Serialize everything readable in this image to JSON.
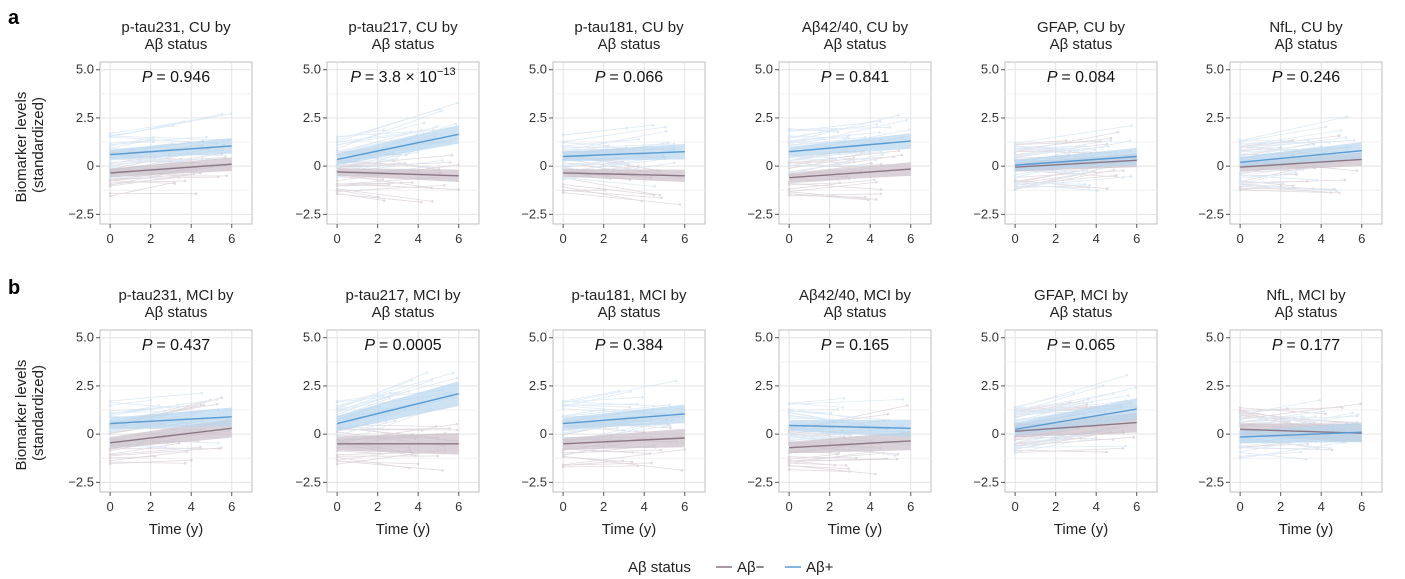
{
  "ylabel": "Biomarker levels (standardized)",
  "xlabel": "Time (y)",
  "legend": {
    "title": "Aβ status",
    "neg": "Aβ−",
    "pos": "Aβ+"
  },
  "colors": {
    "neg": "#8a7785",
    "pos": "#5a9bd2",
    "negBand": "#cbbfc8",
    "posBand": "#b8d5ee"
  },
  "rows": [
    {
      "letter": "a"
    },
    {
      "letter": "b"
    }
  ],
  "chart_data": [
    {
      "type": "line",
      "row": 0,
      "title_line1": "p-tau231, CU by",
      "title_line2": "Aβ status",
      "p_label": "P",
      "p_value": "= 0.946",
      "p_exp": "",
      "x": [
        0,
        6
      ],
      "xticks": [
        0,
        2,
        4,
        6
      ],
      "yticks": [
        -2.5,
        0,
        2.5,
        5.0
      ],
      "ytick_labels": [
        "−2.5",
        "0",
        "2.5",
        "5.0"
      ],
      "ylim": [
        -3,
        5.4
      ],
      "xlim": [
        -0.5,
        7
      ],
      "series": [
        {
          "name": "Aβ−",
          "values": [
            -0.35,
            0.1
          ],
          "band": 0.22
        },
        {
          "name": "Aβ+",
          "values": [
            0.6,
            1.05
          ],
          "band": 0.25
        }
      ]
    },
    {
      "type": "line",
      "row": 0,
      "title_line1": "p-tau217, CU by",
      "title_line2": "Aβ status",
      "p_label": "P",
      "p_value": "= 3.8 × 10",
      "p_exp": "−13",
      "x": [
        0,
        6
      ],
      "xticks": [
        0,
        2,
        4,
        6
      ],
      "yticks": [
        -2.5,
        0,
        2.5,
        5.0
      ],
      "ytick_labels": [
        "−2.5",
        "0",
        "2.5",
        "5.0"
      ],
      "ylim": [
        -3,
        5.4
      ],
      "xlim": [
        -0.5,
        7
      ],
      "series": [
        {
          "name": "Aβ−",
          "values": [
            -0.3,
            -0.5
          ],
          "band": 0.2
        },
        {
          "name": "Aβ+",
          "values": [
            0.35,
            1.65
          ],
          "band": 0.3
        }
      ]
    },
    {
      "type": "line",
      "row": 0,
      "title_line1": "p-tau181, CU by",
      "title_line2": "Aβ status",
      "p_label": "P",
      "p_value": "= 0.066",
      "p_exp": "",
      "x": [
        0,
        6
      ],
      "xticks": [
        0,
        2,
        4,
        6
      ],
      "yticks": [
        -2.5,
        0,
        2.5,
        5.0
      ],
      "ytick_labels": [
        "−2.5",
        "0",
        "2.5",
        "5.0"
      ],
      "ylim": [
        -3,
        5.4
      ],
      "xlim": [
        -0.5,
        7
      ],
      "series": [
        {
          "name": "Aβ−",
          "values": [
            -0.35,
            -0.5
          ],
          "band": 0.2
        },
        {
          "name": "Aβ+",
          "values": [
            0.5,
            0.75
          ],
          "band": 0.25
        }
      ]
    },
    {
      "type": "line",
      "row": 0,
      "title_line1": "Aβ42/40, CU by",
      "title_line2": "Aβ status",
      "p_label": "P",
      "p_value": "= 0.841",
      "p_exp": "",
      "x": [
        0,
        6
      ],
      "xticks": [
        0,
        2,
        4,
        6
      ],
      "yticks": [
        -2.5,
        0,
        2.5,
        5.0
      ],
      "ytick_labels": [
        "−2.5",
        "0",
        "2.5",
        "5.0"
      ],
      "ylim": [
        -3,
        5.4
      ],
      "xlim": [
        -0.5,
        7
      ],
      "series": [
        {
          "name": "Aβ−",
          "values": [
            -0.6,
            -0.15
          ],
          "band": 0.22
        },
        {
          "name": "Aβ+",
          "values": [
            0.75,
            1.3
          ],
          "band": 0.25
        }
      ]
    },
    {
      "type": "line",
      "row": 0,
      "title_line1": "GFAP, CU by",
      "title_line2": "Aβ status",
      "p_label": "P",
      "p_value": "= 0.084",
      "p_exp": "",
      "x": [
        0,
        6
      ],
      "xticks": [
        0,
        2,
        4,
        6
      ],
      "yticks": [
        -2.5,
        0,
        2.5,
        5.0
      ],
      "ytick_labels": [
        "−2.5",
        "0",
        "2.5",
        "5.0"
      ],
      "ylim": [
        -3,
        5.4
      ],
      "xlim": [
        -0.5,
        7
      ],
      "series": [
        {
          "name": "Aβ−",
          "values": [
            -0.05,
            0.3
          ],
          "band": 0.22
        },
        {
          "name": "Aβ+",
          "values": [
            0.05,
            0.5
          ],
          "band": 0.28
        }
      ]
    },
    {
      "type": "line",
      "row": 0,
      "title_line1": "NfL, CU by",
      "title_line2": "Aβ status",
      "p_label": "P",
      "p_value": "= 0.246",
      "p_exp": "",
      "x": [
        0,
        6
      ],
      "xticks": [
        0,
        2,
        4,
        6
      ],
      "yticks": [
        -2.5,
        0,
        2.5,
        5.0
      ],
      "ytick_labels": [
        "−2.5",
        "0",
        "2.5",
        "5.0"
      ],
      "ylim": [
        -3,
        5.4
      ],
      "xlim": [
        -0.5,
        7
      ],
      "series": [
        {
          "name": "Aβ−",
          "values": [
            -0.05,
            0.35
          ],
          "band": 0.22
        },
        {
          "name": "Aβ+",
          "values": [
            0.2,
            0.8
          ],
          "band": 0.28
        }
      ]
    },
    {
      "type": "line",
      "row": 1,
      "title_line1": "p-tau231, MCI by",
      "title_line2": "Aβ status",
      "p_label": "P",
      "p_value": "= 0.437",
      "p_exp": "",
      "x": [
        0,
        6
      ],
      "xticks": [
        0,
        2,
        4,
        6
      ],
      "yticks": [
        -2.5,
        0,
        2.5,
        5.0
      ],
      "ytick_labels": [
        "−2.5",
        "0",
        "2.5",
        "5.0"
      ],
      "ylim": [
        -3,
        5.4
      ],
      "xlim": [
        -0.5,
        7
      ],
      "series": [
        {
          "name": "Aβ−",
          "values": [
            -0.45,
            0.3
          ],
          "band": 0.3
        },
        {
          "name": "Aβ+",
          "values": [
            0.55,
            0.9
          ],
          "band": 0.3
        }
      ]
    },
    {
      "type": "line",
      "row": 1,
      "title_line1": "p-tau217, MCI by",
      "title_line2": "Aβ status",
      "p_label": "P",
      "p_value": "= 0.0005",
      "p_exp": "",
      "x": [
        0,
        6
      ],
      "xticks": [
        0,
        2,
        4,
        6
      ],
      "yticks": [
        -2.5,
        0,
        2.5,
        5.0
      ],
      "ytick_labels": [
        "−2.5",
        "0",
        "2.5",
        "5.0"
      ],
      "ylim": [
        -3,
        5.4
      ],
      "xlim": [
        -0.5,
        7
      ],
      "series": [
        {
          "name": "Aβ−",
          "values": [
            -0.5,
            -0.5
          ],
          "band": 0.35
        },
        {
          "name": "Aβ+",
          "values": [
            0.55,
            2.1
          ],
          "band": 0.4
        }
      ]
    },
    {
      "type": "line",
      "row": 1,
      "title_line1": "p-tau181, MCI by",
      "title_line2": "Aβ status",
      "p_label": "P",
      "p_value": "= 0.384",
      "p_exp": "",
      "x": [
        0,
        6
      ],
      "xticks": [
        0,
        2,
        4,
        6
      ],
      "yticks": [
        -2.5,
        0,
        2.5,
        5.0
      ],
      "ytick_labels": [
        "−2.5",
        "0",
        "2.5",
        "5.0"
      ],
      "ylim": [
        -3,
        5.4
      ],
      "xlim": [
        -0.5,
        7
      ],
      "series": [
        {
          "name": "Aβ−",
          "values": [
            -0.5,
            -0.2
          ],
          "band": 0.3
        },
        {
          "name": "Aβ+",
          "values": [
            0.55,
            1.05
          ],
          "band": 0.3
        }
      ]
    },
    {
      "type": "line",
      "row": 1,
      "title_line1": "Aβ42/40, MCI by",
      "title_line2": "Aβ status",
      "p_label": "P",
      "p_value": "= 0.165",
      "p_exp": "",
      "x": [
        0,
        6
      ],
      "xticks": [
        0,
        2,
        4,
        6
      ],
      "yticks": [
        -2.5,
        0,
        2.5,
        5.0
      ],
      "ytick_labels": [
        "−2.5",
        "0",
        "2.5",
        "5.0"
      ],
      "ylim": [
        -3,
        5.4
      ],
      "xlim": [
        -0.5,
        7
      ],
      "series": [
        {
          "name": "Aβ−",
          "values": [
            -0.7,
            -0.35
          ],
          "band": 0.3
        },
        {
          "name": "Aβ+",
          "values": [
            0.45,
            0.3
          ],
          "band": 0.28
        }
      ]
    },
    {
      "type": "line",
      "row": 1,
      "title_line1": "GFAP, MCI by",
      "title_line2": "Aβ status",
      "p_label": "P",
      "p_value": "= 0.065",
      "p_exp": "",
      "x": [
        0,
        6
      ],
      "xticks": [
        0,
        2,
        4,
        6
      ],
      "yticks": [
        -2.5,
        0,
        2.5,
        5.0
      ],
      "ytick_labels": [
        "−2.5",
        "0",
        "2.5",
        "5.0"
      ],
      "ylim": [
        -3,
        5.4
      ],
      "xlim": [
        -0.5,
        7
      ],
      "series": [
        {
          "name": "Aβ−",
          "values": [
            0.15,
            0.6
          ],
          "band": 0.32
        },
        {
          "name": "Aβ+",
          "values": [
            0.25,
            1.3
          ],
          "band": 0.35
        }
      ]
    },
    {
      "type": "line",
      "row": 1,
      "title_line1": "NfL, MCI by",
      "title_line2": "Aβ status",
      "p_label": "P",
      "p_value": "= 0.177",
      "p_exp": "",
      "x": [
        0,
        6
      ],
      "xticks": [
        0,
        2,
        4,
        6
      ],
      "yticks": [
        -2.5,
        0,
        2.5,
        5.0
      ],
      "ytick_labels": [
        "−2.5",
        "0",
        "2.5",
        "5.0"
      ],
      "ylim": [
        -3,
        5.4
      ],
      "xlim": [
        -0.5,
        7
      ],
      "series": [
        {
          "name": "Aβ−",
          "values": [
            0.25,
            0.05
          ],
          "band": 0.3
        },
        {
          "name": "Aβ+",
          "values": [
            -0.15,
            0.1
          ],
          "band": 0.32
        }
      ]
    }
  ]
}
